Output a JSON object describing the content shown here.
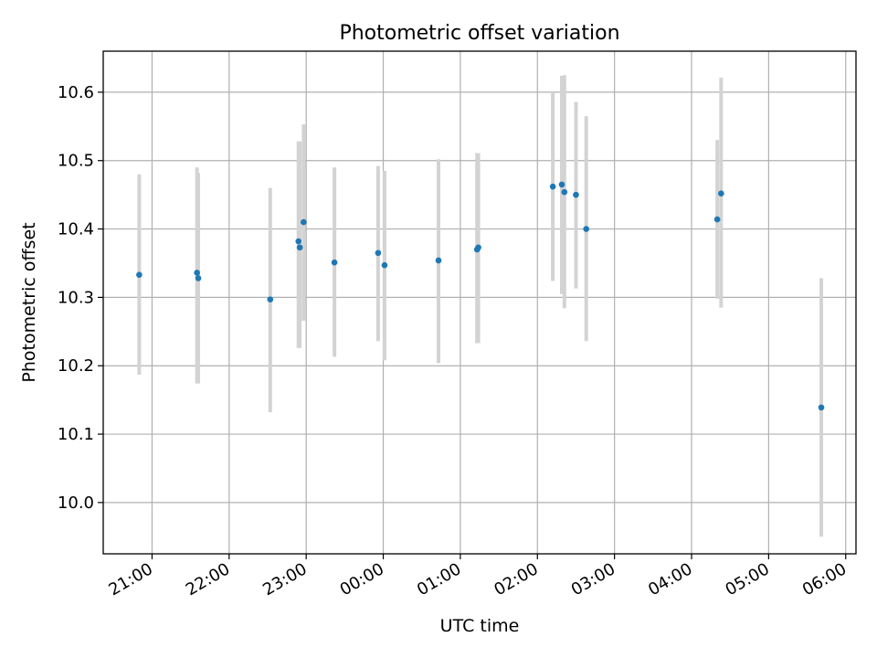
{
  "chart_data": {
    "type": "scatter",
    "title": "Photometric offset variation",
    "xlabel": "UTC time",
    "ylabel": "Photometric offset",
    "x_is_time": true,
    "xlim": [
      "20:22",
      "06:08"
    ],
    "ylim": [
      9.925,
      10.66
    ],
    "grid": true,
    "x_ticks": [
      "21:00",
      "22:00",
      "23:00",
      "00:00",
      "01:00",
      "02:00",
      "03:00",
      "04:00",
      "05:00",
      "06:00"
    ],
    "y_ticks": [
      "10.0",
      "10.1",
      "10.2",
      "10.3",
      "10.4",
      "10.5",
      "10.6"
    ],
    "colors": {
      "point": "#1f77b4",
      "errorbar": "#d3d3d3",
      "grid": "#b0b0b0"
    },
    "points": [
      {
        "x": "20:50",
        "y": 10.333,
        "ymin": 10.187,
        "ymax": 10.48
      },
      {
        "x": "21:35",
        "y": 10.336,
        "ymin": 10.174,
        "ymax": 10.49
      },
      {
        "x": "21:36",
        "y": 10.328,
        "ymin": 10.174,
        "ymax": 10.482
      },
      {
        "x": "22:32",
        "y": 10.297,
        "ymin": 10.132,
        "ymax": 10.46
      },
      {
        "x": "22:54",
        "y": 10.382,
        "ymin": 10.226,
        "ymax": 10.528
      },
      {
        "x": "22:55",
        "y": 10.373,
        "ymin": 10.226,
        "ymax": 10.528
      },
      {
        "x": "22:58",
        "y": 10.41,
        "ymin": 10.266,
        "ymax": 10.553
      },
      {
        "x": "23:22",
        "y": 10.351,
        "ymin": 10.213,
        "ymax": 10.49
      },
      {
        "x": "23:56",
        "y": 10.365,
        "ymin": 10.236,
        "ymax": 10.492
      },
      {
        "x": "00:01",
        "y": 10.347,
        "ymin": 10.208,
        "ymax": 10.485
      },
      {
        "x": "00:43",
        "y": 10.354,
        "ymin": 10.204,
        "ymax": 10.502
      },
      {
        "x": "01:13",
        "y": 10.37,
        "ymin": 10.233,
        "ymax": 10.511
      },
      {
        "x": "01:14",
        "y": 10.373,
        "ymin": 10.233,
        "ymax": 10.511
      },
      {
        "x": "02:12",
        "y": 10.462,
        "ymin": 10.324,
        "ymax": 10.6
      },
      {
        "x": "02:19",
        "y": 10.465,
        "ymin": 10.305,
        "ymax": 10.624
      },
      {
        "x": "02:21",
        "y": 10.454,
        "ymin": 10.284,
        "ymax": 10.625
      },
      {
        "x": "02:30",
        "y": 10.45,
        "ymin": 10.313,
        "ymax": 10.586
      },
      {
        "x": "02:38",
        "y": 10.4,
        "ymin": 10.236,
        "ymax": 10.565
      },
      {
        "x": "04:20",
        "y": 10.414,
        "ymin": 10.298,
        "ymax": 10.53
      },
      {
        "x": "04:23",
        "y": 10.452,
        "ymin": 10.285,
        "ymax": 10.621
      },
      {
        "x": "05:41",
        "y": 10.139,
        "ymin": 9.95,
        "ymax": 10.328
      }
    ]
  }
}
